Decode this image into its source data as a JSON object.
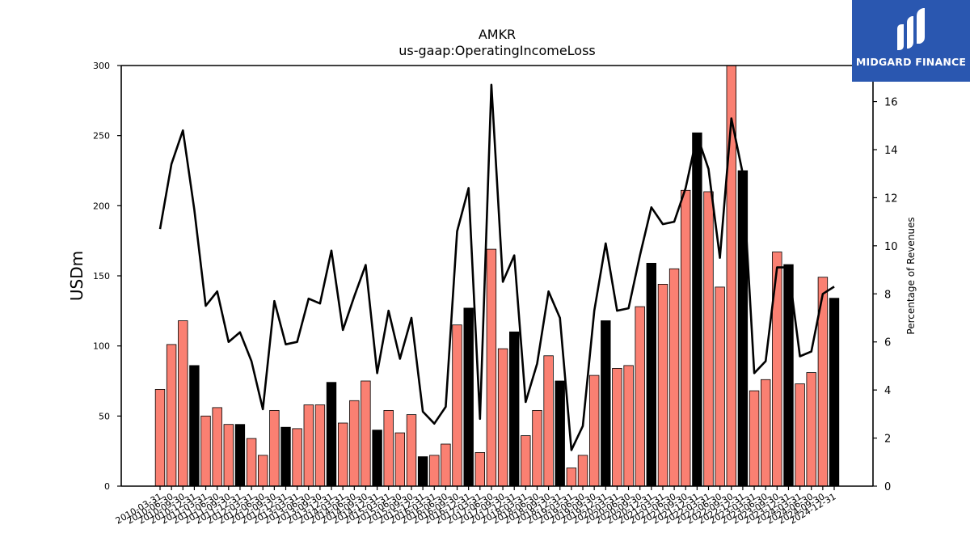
{
  "chart_data": {
    "type": "bar+line",
    "title": "AMKR",
    "subtitle": "us-gaap:OperatingIncomeLoss",
    "ylabel": "USDm",
    "y2label": "Percentage of Revenues",
    "ylim": [
      0,
      300
    ],
    "y2lim": [
      0,
      17.5
    ],
    "yticks": [
      0,
      50,
      100,
      150,
      200,
      250,
      300
    ],
    "y2ticks": [
      0,
      2,
      4,
      6,
      8,
      10,
      12,
      14,
      16
    ],
    "grid": false,
    "colors": {
      "quarter": "#fa8072",
      "year_end": "#000000",
      "line": "#000000"
    },
    "categories": [
      "2010-03-31",
      "2010-06-30",
      "2010-09-30",
      "2010-12-31",
      "2011-03-31",
      "2011-06-30",
      "2011-09-30",
      "2011-12-31",
      "2012-03-31",
      "2012-06-30",
      "2012-09-30",
      "2012-12-31",
      "2013-03-31",
      "2013-06-30",
      "2013-09-30",
      "2013-12-31",
      "2014-03-31",
      "2014-06-30",
      "2014-09-30",
      "2014-12-31",
      "2015-03-31",
      "2015-06-30",
      "2015-09-30",
      "2015-12-31",
      "2016-03-31",
      "2016-06-30",
      "2016-09-30",
      "2016-12-31",
      "2017-03-31",
      "2017-06-30",
      "2017-09-30",
      "2017-12-31",
      "2018-03-31",
      "2018-06-30",
      "2018-09-30",
      "2018-12-31",
      "2019-03-31",
      "2019-06-30",
      "2019-09-30",
      "2019-12-31",
      "2020-03-31",
      "2020-06-30",
      "2020-09-30",
      "2020-12-31",
      "2021-03-31",
      "2021-06-30",
      "2021-09-30",
      "2021-12-31",
      "2022-03-31",
      "2022-06-30",
      "2022-09-30",
      "2022-12-31",
      "2023-03-31",
      "2023-06-30",
      "2023-09-30",
      "2023-12-31",
      "2024-03-31",
      "2024-06-30",
      "2024-09-30",
      "2024-12-31"
    ],
    "series": [
      {
        "values": [
          69,
          101,
          118,
          86,
          50,
          56,
          44,
          44,
          34,
          22,
          54,
          42,
          41,
          58,
          58,
          74,
          45,
          61,
          75,
          40,
          54,
          38,
          51,
          21,
          22,
          30,
          115,
          127,
          24,
          169,
          98,
          110,
          36,
          54,
          93,
          75,
          13,
          22,
          79,
          118,
          84,
          86,
          128,
          159,
          144,
          155,
          211,
          252,
          210,
          142,
          300,
          225,
          68,
          76,
          167,
          158,
          73,
          81,
          149,
          134
        ],
        "year_end": [
          false,
          false,
          false,
          true,
          false,
          false,
          false,
          true,
          false,
          false,
          false,
          true,
          false,
          false,
          false,
          true,
          false,
          false,
          false,
          true,
          false,
          false,
          false,
          true,
          false,
          false,
          false,
          true,
          false,
          false,
          false,
          true,
          false,
          false,
          false,
          true,
          false,
          false,
          false,
          true,
          false,
          false,
          false,
          true,
          false,
          false,
          false,
          true,
          false,
          false,
          false,
          true,
          false,
          false,
          false,
          true,
          false,
          false,
          false,
          true
        ]
      },
      {
        "axis": "right",
        "values": [
          10.7,
          13.4,
          14.8,
          11.5,
          7.5,
          8.1,
          6.0,
          6.4,
          5.2,
          3.2,
          7.7,
          5.9,
          6.0,
          7.8,
          7.6,
          9.8,
          6.5,
          7.9,
          9.2,
          4.7,
          7.3,
          5.3,
          7.0,
          3.1,
          2.6,
          3.3,
          10.6,
          12.4,
          2.8,
          16.7,
          8.5,
          9.6,
          3.5,
          5.1,
          8.1,
          7.0,
          1.5,
          2.5,
          7.3,
          10.1,
          7.3,
          7.4,
          9.6,
          11.6,
          10.9,
          11.0,
          12.4,
          14.6,
          13.2,
          9.5,
          15.3,
          13.0,
          4.7,
          5.2,
          9.1,
          9.1,
          5.4,
          5.6,
          8.0,
          8.3
        ]
      }
    ]
  },
  "logo": {
    "text": "MIDGARD FINANCE"
  }
}
